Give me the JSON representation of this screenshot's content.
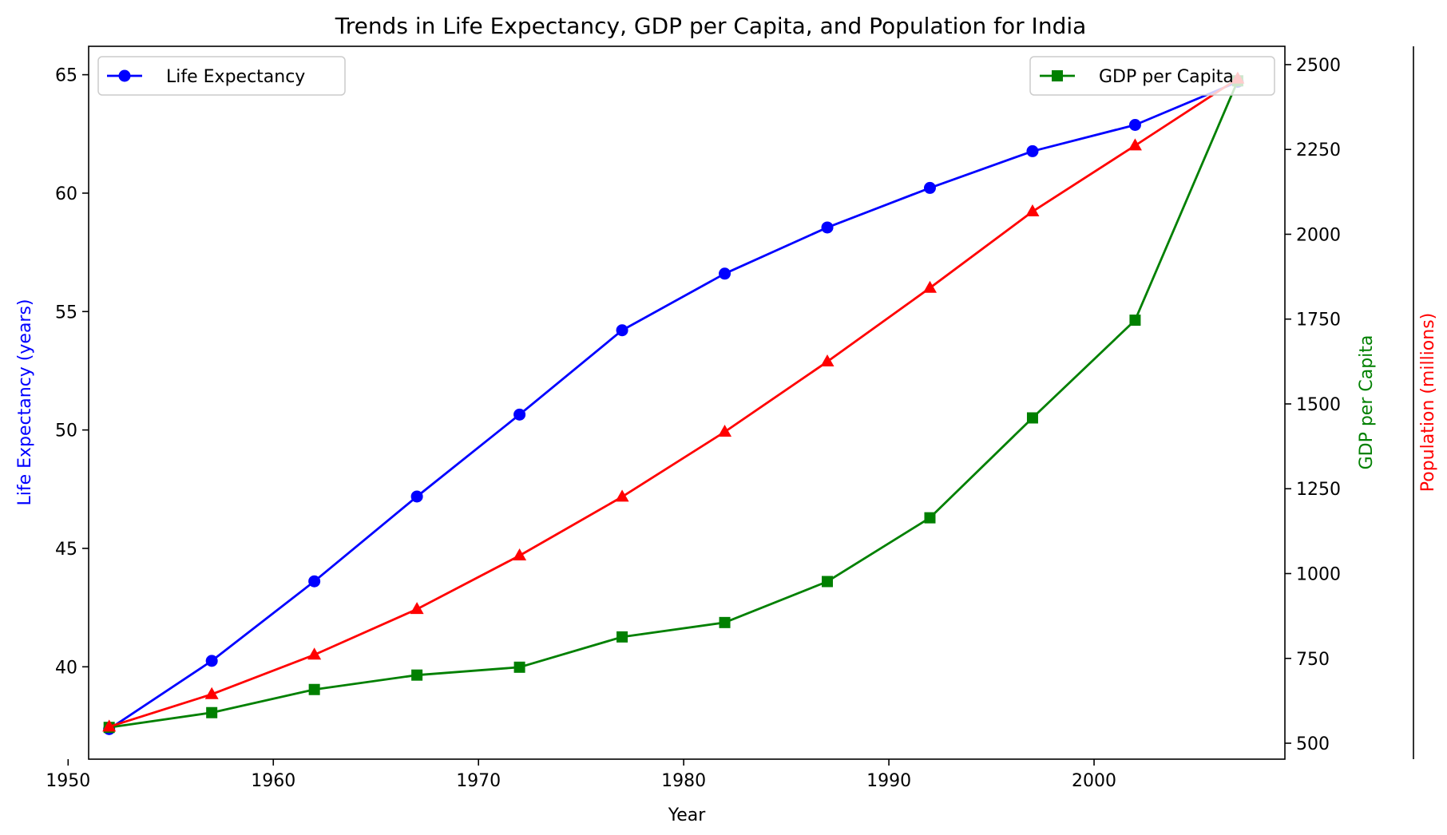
{
  "chart_data": {
    "type": "line",
    "title": "Trends in Life Expectancy, GDP per Capita, and Population for India",
    "xlabel": "Year",
    "x": [
      1952,
      1957,
      1962,
      1967,
      1972,
      1977,
      1982,
      1987,
      1992,
      1997,
      2002,
      2007
    ],
    "xlim": [
      1951,
      2009.3
    ],
    "x_ticks": [
      1950,
      1960,
      1970,
      1980,
      1990,
      2000
    ],
    "grid": false,
    "axes": {
      "left": {
        "label": "Life Expectancy (years)",
        "color": "#0000ff",
        "ylim": [
          36.1,
          66.2
        ],
        "ticks": [
          40,
          45,
          50,
          55,
          60,
          65
        ]
      },
      "right": {
        "label": "GDP per Capita",
        "color": "#008000",
        "ylim": [
          453,
          2554
        ],
        "ticks": [
          500,
          750,
          1000,
          1250,
          1500,
          1750,
          2000,
          2250,
          2500
        ]
      },
      "outer_right": {
        "label": "Population (millions)",
        "color": "#ff0000",
        "ticks_shown": false
      }
    },
    "series": [
      {
        "name": "Life Expectancy",
        "axis": "left",
        "color": "#0000ff",
        "marker": "circle",
        "values": [
          37.37,
          40.25,
          43.61,
          47.19,
          50.65,
          54.21,
          56.6,
          58.55,
          60.22,
          61.77,
          62.88,
          64.7
        ]
      },
      {
        "name": "GDP per Capita",
        "axis": "right",
        "color": "#008000",
        "marker": "square",
        "values": [
          546.6,
          590.1,
          658.3,
          700.8,
          724.0,
          813.3,
          855.7,
          976.5,
          1164.4,
          1458.8,
          1746.8,
          2452.2
        ]
      },
      {
        "axis": "outer_right",
        "color": "#ff0000",
        "marker": "triangle",
        "values": [
          372.0,
          409.0,
          454.0,
          506.0,
          567.0,
          634.0,
          708.0,
          788.0,
          872.0,
          959.0,
          1034.2,
          1110.4
        ]
      }
    ],
    "legends": [
      {
        "position": "upper-left",
        "entries": [
          "Life Expectancy"
        ]
      },
      {
        "position": "upper-right",
        "entries": [
          "GDP per Capita"
        ]
      }
    ]
  }
}
